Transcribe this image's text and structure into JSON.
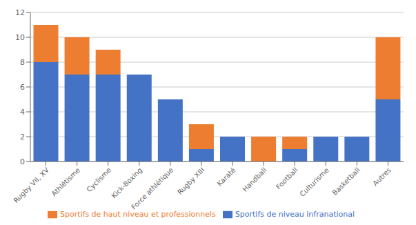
{
  "chart_data": {
    "type": "bar",
    "stacked": true,
    "categories": [
      "Rugby VII, XV",
      "Athlétisme",
      "Cyclisme",
      "Kick-Boxing",
      "Force athlétique",
      "Rugby XIII",
      "Karaté",
      "Handball",
      "Football",
      "Culturisme",
      "Basketball",
      "Autres"
    ],
    "series": [
      {
        "name": "Sportifs de niveau infranational",
        "color": "#4472C4",
        "values": [
          8,
          7,
          7,
          7,
          5,
          1,
          2,
          0,
          1,
          2,
          2,
          5
        ]
      },
      {
        "name": "Sportifs de haut niveau et professionnels",
        "color": "#ED7D31",
        "values": [
          3,
          3,
          2,
          0,
          0,
          2,
          0,
          2,
          1,
          0,
          0,
          5
        ]
      }
    ],
    "ylim": [
      0,
      12
    ],
    "yticks": [
      0,
      2,
      4,
      6,
      8,
      10,
      12
    ],
    "grid": true,
    "legend": "bottom"
  }
}
